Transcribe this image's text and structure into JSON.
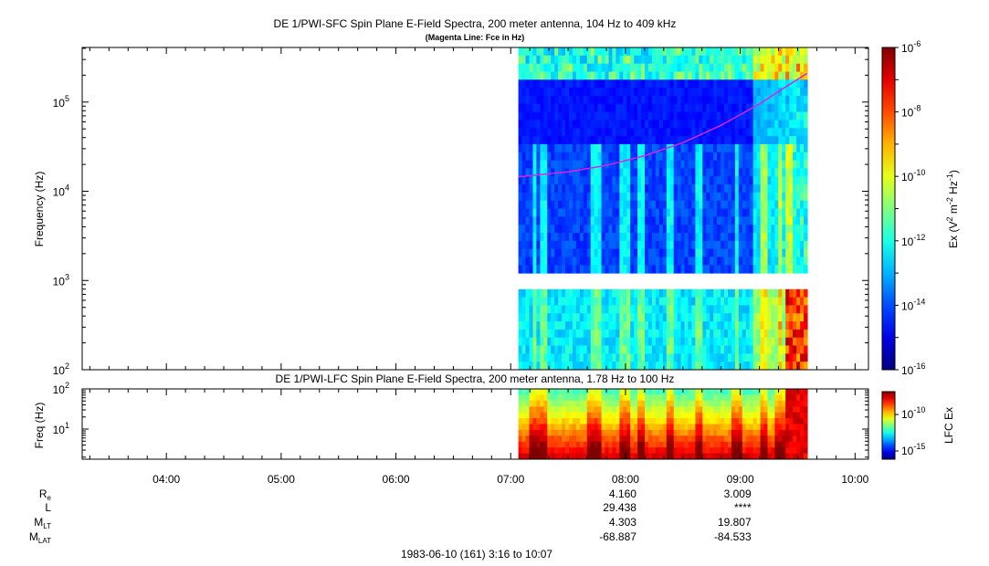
{
  "chart_data": [
    {
      "type": "heatmap",
      "panel": "SFC",
      "title": "DE 1/PWI-SFC  Spin Plane E-Field Spectra, 200 meter antenna, 104 Hz to 409 kHz",
      "subtitle": "(Magenta Line: Fce in Hz)",
      "ylabel": "Frequency (Hz)",
      "yscale": "log",
      "ylim": [
        100,
        409000
      ],
      "yticks": [
        {
          "value": 100,
          "base": "10",
          "exp": "2"
        },
        {
          "value": 1000,
          "base": "10",
          "exp": "3"
        },
        {
          "value": 10000,
          "base": "10",
          "exp": "4"
        },
        {
          "value": 100000,
          "base": "10",
          "exp": "5"
        }
      ],
      "data_start": "07:04",
      "data_end": "09:35",
      "gap_hz": [
        900,
        1050
      ],
      "colorbar": {
        "label": "Ex (V² m⁻² Hz⁻¹)",
        "label_base": "Ex (V",
        "label_e1": "2",
        "label_mid": " m",
        "label_e2": "-2",
        "label_mid2": " Hz",
        "label_e3": "-1",
        "label_end": ")",
        "scale": "log",
        "range": [
          1e-16,
          1e-06
        ],
        "ticks": [
          {
            "value": 1e-06,
            "base": "10",
            "exp": "-6"
          },
          {
            "value": 1e-08,
            "base": "10",
            "exp": "-8"
          },
          {
            "value": 1e-10,
            "base": "10",
            "exp": "-10"
          },
          {
            "value": 1e-12,
            "base": "10",
            "exp": "-12"
          },
          {
            "value": 1e-14,
            "base": "10",
            "exp": "-14"
          },
          {
            "value": 1e-16,
            "base": "10",
            "exp": "-16"
          }
        ]
      },
      "fce_line": {
        "color": "#e020e0",
        "points": [
          {
            "t": "07:04",
            "hz": 14500
          },
          {
            "t": "07:30",
            "hz": 16500
          },
          {
            "t": "07:50",
            "hz": 19500
          },
          {
            "t": "08:10",
            "hz": 25000
          },
          {
            "t": "08:30",
            "hz": 35000
          },
          {
            "t": "08:50",
            "hz": 55000
          },
          {
            "t": "09:10",
            "hz": 95000
          },
          {
            "t": "09:22",
            "hz": 140000
          },
          {
            "t": "09:35",
            "hz": 210000
          }
        ]
      }
    },
    {
      "type": "heatmap",
      "panel": "LFC",
      "title": "DE 1/PWI-LFC  Spin Plane E-Field Spectra, 200 meter antenna, 1.78 Hz to 100 Hz",
      "ylabel": "Freq (Hz)",
      "yscale": "log",
      "ylim": [
        1.78,
        100
      ],
      "yticks": [
        {
          "value": 10,
          "base": "10",
          "exp": "1"
        },
        {
          "value": 100,
          "base": "10",
          "exp": "2"
        }
      ],
      "data_start": "07:04",
      "data_end": "09:35",
      "colorbar": {
        "label": "LFC Ex",
        "scale": "log",
        "ticks": [
          {
            "value": 1e-10,
            "base": "10",
            "exp": "-10"
          },
          {
            "value": 1e-15,
            "base": "10",
            "exp": "-15"
          }
        ]
      }
    }
  ],
  "time_axis": {
    "range": [
      "03:16",
      "10:07"
    ],
    "ticks": [
      "04:00",
      "05:00",
      "06:00",
      "07:00",
      "08:00",
      "09:00",
      "10:00"
    ]
  },
  "ephemeris": {
    "rows": [
      {
        "name": "R",
        "sub": "e",
        "values": [
          "4.160",
          "3.009"
        ]
      },
      {
        "name": "L",
        "sub": "",
        "values": [
          "29.438",
          "****"
        ]
      },
      {
        "name": "M",
        "sub": "LT",
        "values": [
          "4.303",
          "19.807"
        ]
      },
      {
        "name": "M",
        "sub": "LAT",
        "values": [
          "-68.887",
          "-84.533"
        ]
      }
    ],
    "at_times": [
      "08:00",
      "09:00"
    ]
  },
  "footer": "1983-06-10 (161) 3:16 to 10:07"
}
